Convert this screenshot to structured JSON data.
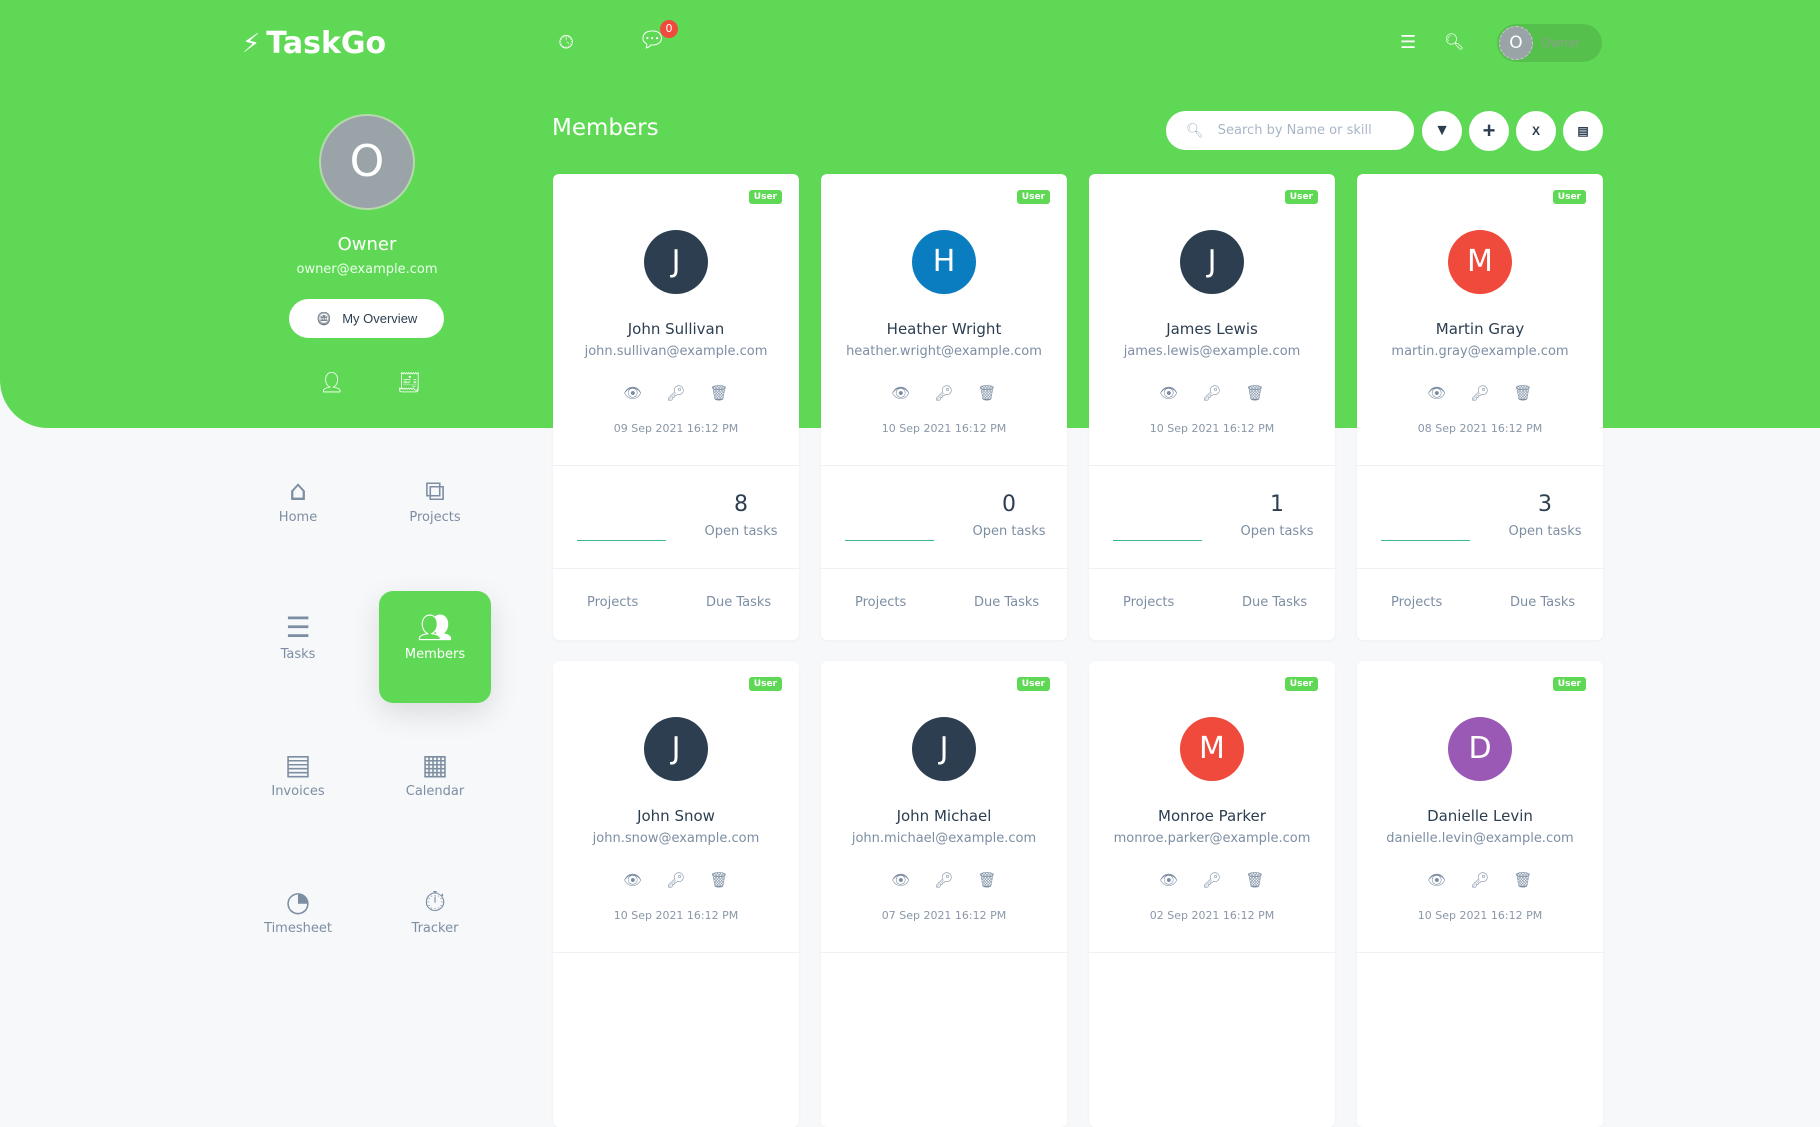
{
  "app": {
    "name": "TaskGo",
    "notification_count": "0",
    "user_initial": "O",
    "user_name": "Owner"
  },
  "colors": {
    "brand": "#5fd955",
    "badge": "#f04a3c"
  },
  "profile": {
    "initial": "O",
    "name": "Owner",
    "email": "owner@example.com",
    "overview_label": "My Overview"
  },
  "nav": [
    {
      "label": "Home",
      "icon": "home-icon"
    },
    {
      "label": "Projects",
      "icon": "projects-icon"
    },
    {
      "label": "Tasks",
      "icon": "tasks-icon"
    },
    {
      "label": "Members",
      "icon": "members-icon",
      "active": true
    },
    {
      "label": "Invoices",
      "icon": "invoice-icon"
    },
    {
      "label": "Calendar",
      "icon": "calendar-icon"
    },
    {
      "label": "Timesheet",
      "icon": "clock-icon"
    },
    {
      "label": "Tracker",
      "icon": "stopwatch-icon"
    }
  ],
  "page": {
    "title": "Members",
    "search_placeholder": "Search by Name or skill"
  },
  "labels": {
    "role": "User",
    "open_tasks": "Open tasks",
    "projects": "Projects",
    "due_tasks": "Due Tasks"
  },
  "members": [
    {
      "initial": "J",
      "name": "John Sullivan",
      "email": "john.sullivan@example.com",
      "date": "09 Sep 2021 16:12 PM",
      "open_tasks": "8",
      "color": "#2c3e50"
    },
    {
      "initial": "H",
      "name": "Heather Wright",
      "email": "heather.wright@example.com",
      "date": "10 Sep 2021 16:12 PM",
      "open_tasks": "0",
      "color": "#0a7dc0"
    },
    {
      "initial": "J",
      "name": "James Lewis",
      "email": "james.lewis@example.com",
      "date": "10 Sep 2021 16:12 PM",
      "open_tasks": "1",
      "color": "#2c3e50"
    },
    {
      "initial": "M",
      "name": "Martin Gray",
      "email": "martin.gray@example.com",
      "date": "08 Sep 2021 16:12 PM",
      "open_tasks": "3",
      "color": "#f04a3c"
    },
    {
      "initial": "J",
      "name": "John Snow",
      "email": "john.snow@example.com",
      "date": "10 Sep 2021 16:12 PM",
      "color": "#2c3e50"
    },
    {
      "initial": "J",
      "name": "John Michael",
      "email": "john.michael@example.com",
      "date": "07 Sep 2021 16:12 PM",
      "color": "#2c3e50"
    },
    {
      "initial": "M",
      "name": "Monroe Parker",
      "email": "monroe.parker@example.com",
      "date": "02 Sep 2021 16:12 PM",
      "color": "#f04a3c"
    },
    {
      "initial": "D",
      "name": "Danielle Levin",
      "email": "danielle.levin@example.com",
      "date": "10 Sep 2021 16:12 PM",
      "color": "#9b59b6"
    }
  ]
}
